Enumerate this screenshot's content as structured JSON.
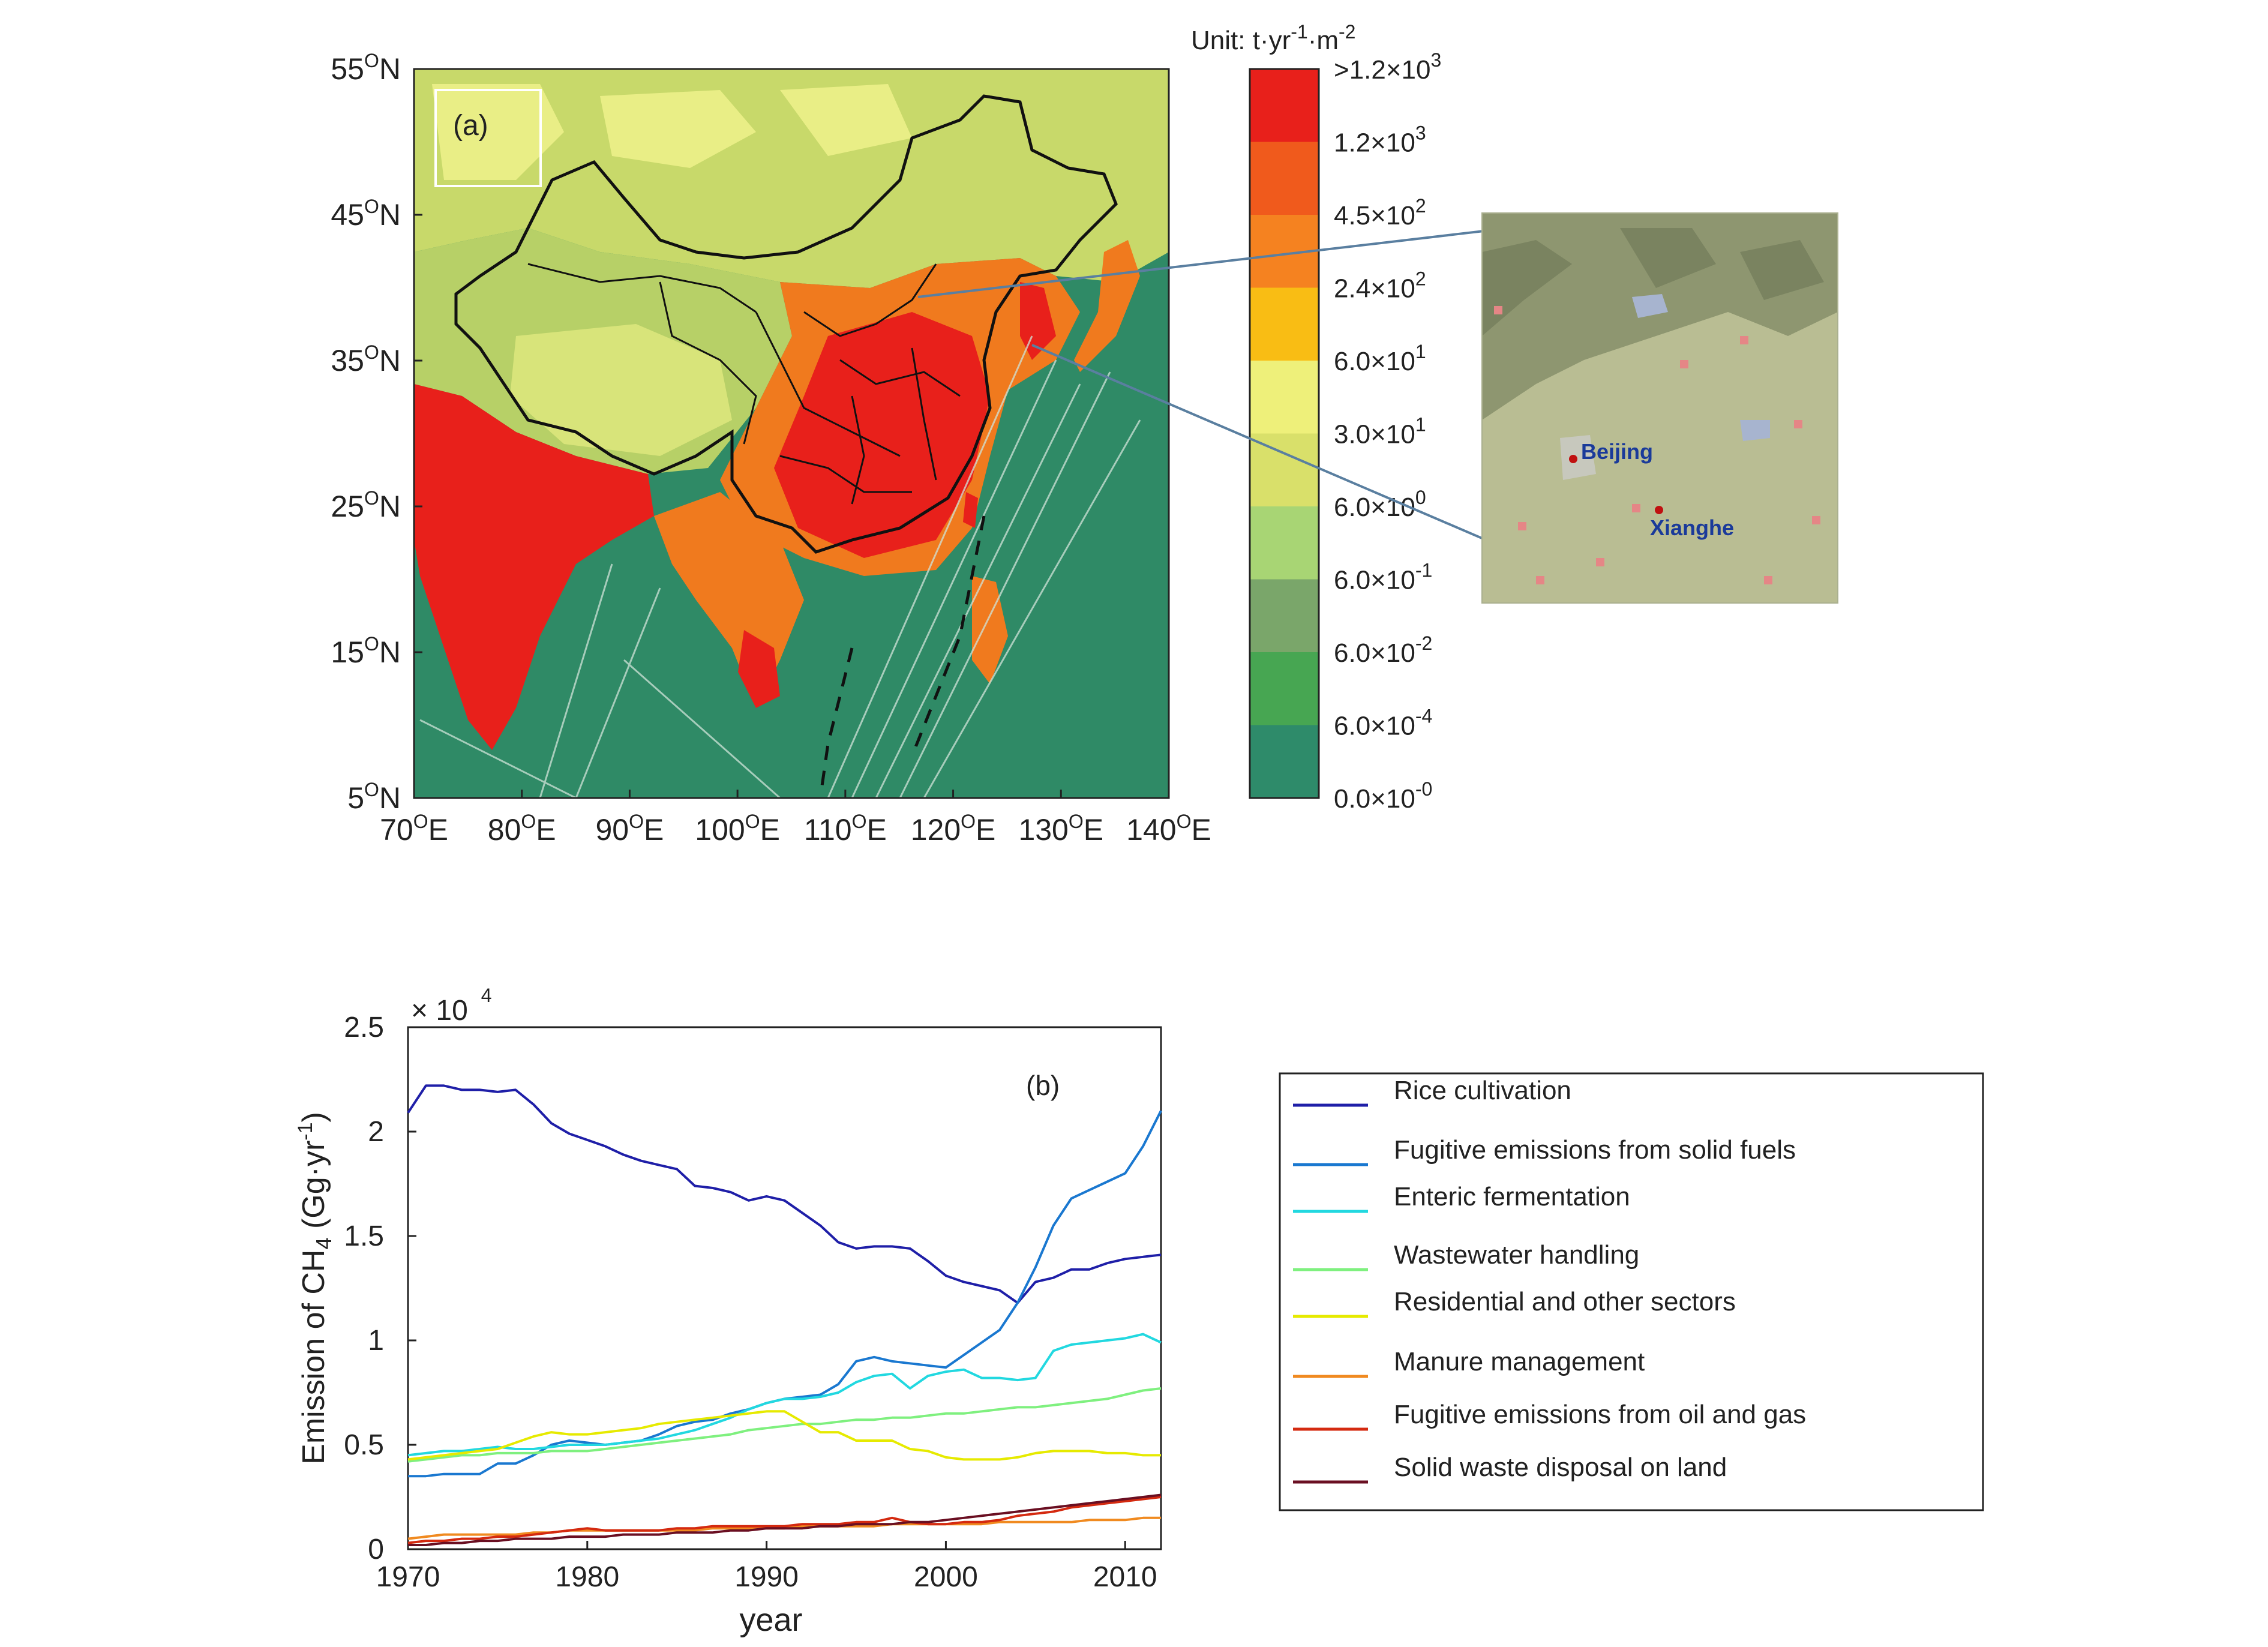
{
  "map_panel": {
    "panel_label": "(a)",
    "lat_ticks": [
      {
        "lat": 55,
        "base": "55",
        "sup": "O",
        "suffix": "N"
      },
      {
        "lat": 45,
        "base": "45",
        "sup": "O",
        "suffix": "N"
      },
      {
        "lat": 35,
        "base": "35",
        "sup": "O",
        "suffix": "N"
      },
      {
        "lat": 25,
        "base": "25",
        "sup": "O",
        "suffix": "N"
      },
      {
        "lat": 15,
        "base": "15",
        "sup": "O",
        "suffix": "N"
      },
      {
        "lat": 5,
        "base": "5",
        "sup": "O",
        "suffix": "N"
      }
    ],
    "lon_ticks": [
      {
        "lon": 70,
        "base": "70",
        "sup": "O",
        "suffix": "E"
      },
      {
        "lon": 80,
        "base": "80",
        "sup": "O",
        "suffix": "E"
      },
      {
        "lon": 90,
        "base": "90",
        "sup": "O",
        "suffix": "E"
      },
      {
        "lon": 100,
        "base": "100",
        "sup": "O",
        "suffix": "E"
      },
      {
        "lon": 110,
        "base": "110",
        "sup": "O",
        "suffix": "E"
      },
      {
        "lon": 120,
        "base": "120",
        "sup": "O",
        "suffix": "E"
      },
      {
        "lon": 130,
        "base": "130",
        "sup": "O",
        "suffix": "E"
      },
      {
        "lon": 140,
        "base": "140",
        "sup": "O",
        "suffix": "E"
      }
    ],
    "lon_range": [
      70,
      140
    ],
    "lat_range": [
      5,
      55
    ],
    "colorbar": {
      "unit_title": "Unit: t·yr",
      "unit_sup1": "-1",
      "unit_mid": "·m",
      "unit_sup2": "-2",
      "levels": [
        {
          "color": "#e8201b",
          "base": ">1.2×10",
          "exp": "3"
        },
        {
          "color": "#f05a1c",
          "base": "1.2×10",
          "exp": "3"
        },
        {
          "color": "#f58220",
          "base": "4.5×10",
          "exp": "2"
        },
        {
          "color": "#f9bd14",
          "base": "2.4×10",
          "exp": "2"
        },
        {
          "color": "#eef07a",
          "base": "6.0×10",
          "exp": "1"
        },
        {
          "color": "#d9e06a",
          "base": "3.0×10",
          "exp": "1"
        },
        {
          "color": "#a8d574",
          "base": "6.0×10",
          "exp": "0"
        },
        {
          "color": "#7aa66a",
          "base": "6.0×10",
          "exp": "-1"
        },
        {
          "color": "#47a652",
          "base": "6.0×10",
          "exp": "-2"
        },
        {
          "color": "#2e8b6a",
          "base": "6.0×10",
          "exp": "-4"
        },
        {
          "color": "#2e8b6a",
          "base": "0.0×10",
          "exp": "-0"
        }
      ]
    },
    "inset": {
      "labels": [
        {
          "text": "Beijing",
          "color": "#1a3a9a"
        },
        {
          "text": "Xianghe",
          "color": "#1a3a9a"
        }
      ]
    }
  },
  "chart_data": {
    "type": "line",
    "panel_label": "(b)",
    "xlabel": "year",
    "ylabel_main": "Emission of CH",
    "ylabel_sub": "4",
    "ylabel_tail": " (Gg·yr",
    "ylabel_sup": "-1",
    "ylabel_close": ")",
    "multiplier": "× 10",
    "multiplier_exp": "4",
    "xlim": [
      1970,
      2012
    ],
    "ylim": [
      0,
      2.5
    ],
    "x_ticks": [
      1970,
      1980,
      1990,
      2000,
      2010
    ],
    "y_ticks": [
      {
        "value": 0,
        "label": "0"
      },
      {
        "value": 0.5,
        "label": "0.5"
      },
      {
        "value": 1,
        "label": "1"
      },
      {
        "value": 1.5,
        "label": "1.5"
      },
      {
        "value": 2,
        "label": "2"
      },
      {
        "value": 2.5,
        "label": "2.5"
      }
    ],
    "x": [
      1970,
      1971,
      1972,
      1973,
      1974,
      1975,
      1976,
      1977,
      1978,
      1979,
      1980,
      1981,
      1982,
      1983,
      1984,
      1985,
      1986,
      1987,
      1988,
      1989,
      1990,
      1991,
      1992,
      1993,
      1994,
      1995,
      1996,
      1997,
      1998,
      1999,
      2000,
      2001,
      2002,
      2003,
      2004,
      2005,
      2006,
      2007,
      2008,
      2009,
      2010,
      2011,
      2012
    ],
    "series": [
      {
        "name": "Rice cultivation",
        "color": "#1f1fa8",
        "values": [
          2.09,
          2.22,
          2.22,
          2.2,
          2.2,
          2.19,
          2.2,
          2.13,
          2.04,
          1.99,
          1.96,
          1.93,
          1.89,
          1.86,
          1.84,
          1.82,
          1.74,
          1.73,
          1.71,
          1.67,
          1.69,
          1.67,
          1.61,
          1.55,
          1.47,
          1.44,
          1.45,
          1.45,
          1.44,
          1.38,
          1.31,
          1.28,
          1.26,
          1.24,
          1.18,
          1.28,
          1.3,
          1.34,
          1.34,
          1.37,
          1.39,
          1.4,
          1.41
        ]
      },
      {
        "name": "Fugitive emissions from solid fuels",
        "color": "#1a78d0",
        "values": [
          0.35,
          0.35,
          0.36,
          0.36,
          0.36,
          0.41,
          0.41,
          0.45,
          0.5,
          0.52,
          0.51,
          0.5,
          0.51,
          0.52,
          0.55,
          0.59,
          0.61,
          0.62,
          0.65,
          0.67,
          0.7,
          0.72,
          0.73,
          0.74,
          0.79,
          0.9,
          0.92,
          0.9,
          0.89,
          0.88,
          0.87,
          0.93,
          0.99,
          1.05,
          1.18,
          1.35,
          1.55,
          1.68,
          1.72,
          1.76,
          1.8,
          1.93,
          2.1
        ]
      },
      {
        "name": "Enteric fermentation",
        "color": "#22d8e0",
        "values": [
          0.45,
          0.46,
          0.47,
          0.47,
          0.48,
          0.49,
          0.48,
          0.48,
          0.49,
          0.5,
          0.5,
          0.5,
          0.51,
          0.52,
          0.53,
          0.55,
          0.57,
          0.6,
          0.63,
          0.67,
          0.7,
          0.72,
          0.72,
          0.73,
          0.75,
          0.8,
          0.83,
          0.84,
          0.77,
          0.83,
          0.85,
          0.86,
          0.82,
          0.82,
          0.81,
          0.82,
          0.95,
          0.98,
          0.99,
          1.0,
          1.01,
          1.03,
          0.99
        ]
      },
      {
        "name": "Wastewater handling",
        "color": "#7ff07f",
        "values": [
          0.42,
          0.43,
          0.44,
          0.45,
          0.45,
          0.46,
          0.46,
          0.46,
          0.47,
          0.47,
          0.47,
          0.48,
          0.49,
          0.5,
          0.51,
          0.52,
          0.53,
          0.54,
          0.55,
          0.57,
          0.58,
          0.59,
          0.6,
          0.6,
          0.61,
          0.62,
          0.62,
          0.63,
          0.63,
          0.64,
          0.65,
          0.65,
          0.66,
          0.67,
          0.68,
          0.68,
          0.69,
          0.7,
          0.71,
          0.72,
          0.74,
          0.76,
          0.77
        ]
      },
      {
        "name": "Residential and other sectors",
        "color": "#e6ea00",
        "values": [
          0.43,
          0.44,
          0.45,
          0.46,
          0.47,
          0.48,
          0.51,
          0.54,
          0.56,
          0.55,
          0.55,
          0.56,
          0.57,
          0.58,
          0.6,
          0.61,
          0.62,
          0.63,
          0.64,
          0.65,
          0.66,
          0.66,
          0.61,
          0.56,
          0.56,
          0.52,
          0.52,
          0.52,
          0.48,
          0.47,
          0.44,
          0.43,
          0.43,
          0.43,
          0.44,
          0.46,
          0.47,
          0.47,
          0.47,
          0.46,
          0.46,
          0.45,
          0.45
        ]
      },
      {
        "name": "Manure management",
        "color": "#f08a20",
        "values": [
          0.05,
          0.06,
          0.07,
          0.07,
          0.07,
          0.07,
          0.07,
          0.08,
          0.08,
          0.09,
          0.09,
          0.09,
          0.09,
          0.09,
          0.09,
          0.09,
          0.09,
          0.1,
          0.1,
          0.1,
          0.1,
          0.1,
          0.11,
          0.11,
          0.11,
          0.11,
          0.11,
          0.12,
          0.12,
          0.12,
          0.12,
          0.12,
          0.12,
          0.13,
          0.13,
          0.13,
          0.13,
          0.13,
          0.14,
          0.14,
          0.14,
          0.15,
          0.15
        ]
      },
      {
        "name": "Fugitive emissions from oil and gas",
        "color": "#d42a10",
        "values": [
          0.03,
          0.04,
          0.04,
          0.05,
          0.05,
          0.06,
          0.06,
          0.07,
          0.08,
          0.09,
          0.1,
          0.09,
          0.09,
          0.09,
          0.09,
          0.1,
          0.1,
          0.11,
          0.11,
          0.11,
          0.11,
          0.11,
          0.12,
          0.12,
          0.12,
          0.13,
          0.13,
          0.15,
          0.13,
          0.12,
          0.12,
          0.13,
          0.13,
          0.14,
          0.16,
          0.17,
          0.18,
          0.2,
          0.21,
          0.22,
          0.23,
          0.24,
          0.25
        ]
      },
      {
        "name": "Solid waste disposal on land",
        "color": "#6a0f22",
        "values": [
          0.02,
          0.02,
          0.03,
          0.03,
          0.04,
          0.04,
          0.05,
          0.05,
          0.05,
          0.06,
          0.06,
          0.06,
          0.07,
          0.07,
          0.07,
          0.08,
          0.08,
          0.08,
          0.09,
          0.09,
          0.1,
          0.1,
          0.1,
          0.11,
          0.11,
          0.12,
          0.12,
          0.12,
          0.13,
          0.13,
          0.14,
          0.15,
          0.16,
          0.17,
          0.18,
          0.19,
          0.2,
          0.21,
          0.22,
          0.23,
          0.24,
          0.25,
          0.26
        ]
      }
    ],
    "legend_placement": "right"
  }
}
